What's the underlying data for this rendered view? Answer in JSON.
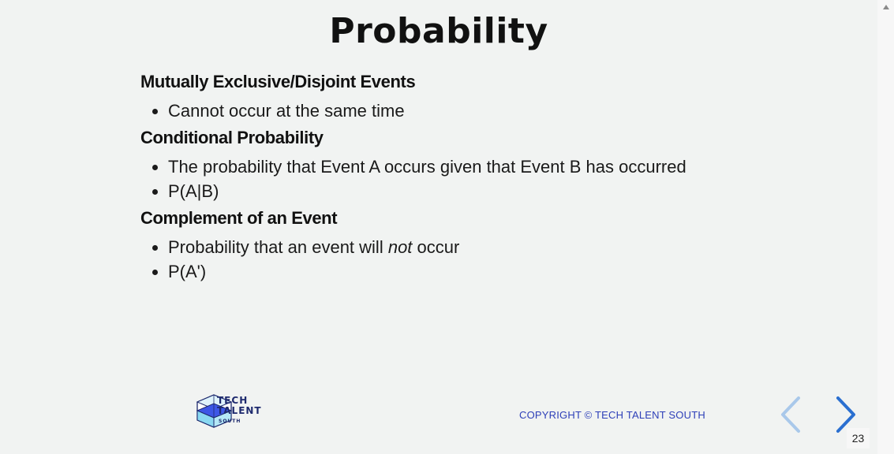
{
  "slide": {
    "title": "Probability",
    "sections": [
      {
        "heading": "Mutually Exclusive/Disjoint Events",
        "bullets": [
          "Cannot occur at the same time"
        ]
      },
      {
        "heading": "Conditional Probability",
        "bullets": [
          "The probability that Event A occurs given that Event B has occurred",
          "P(A|B)"
        ]
      },
      {
        "heading": "Complement of an Event",
        "bullet1_pre": "Probability that an event will ",
        "bullet1_em": "not",
        "bullet1_post": " occur",
        "bullet2": "P(A')"
      }
    ]
  },
  "footer": {
    "logo_line1": "TECH",
    "logo_line2": "TALENT",
    "logo_line3": "SOUTH",
    "copyright": "COPYRIGHT © TECH TALENT SOUTH"
  },
  "nav": {
    "prev_icon": "chevron-left-icon",
    "next_icon": "chevron-right-icon",
    "page_number": "23"
  },
  "colors": {
    "background": "#f1f3f2",
    "copyright": "#2d3fb8",
    "nav_prev": "#a9c8ea",
    "nav_next": "#2a6fd0"
  }
}
